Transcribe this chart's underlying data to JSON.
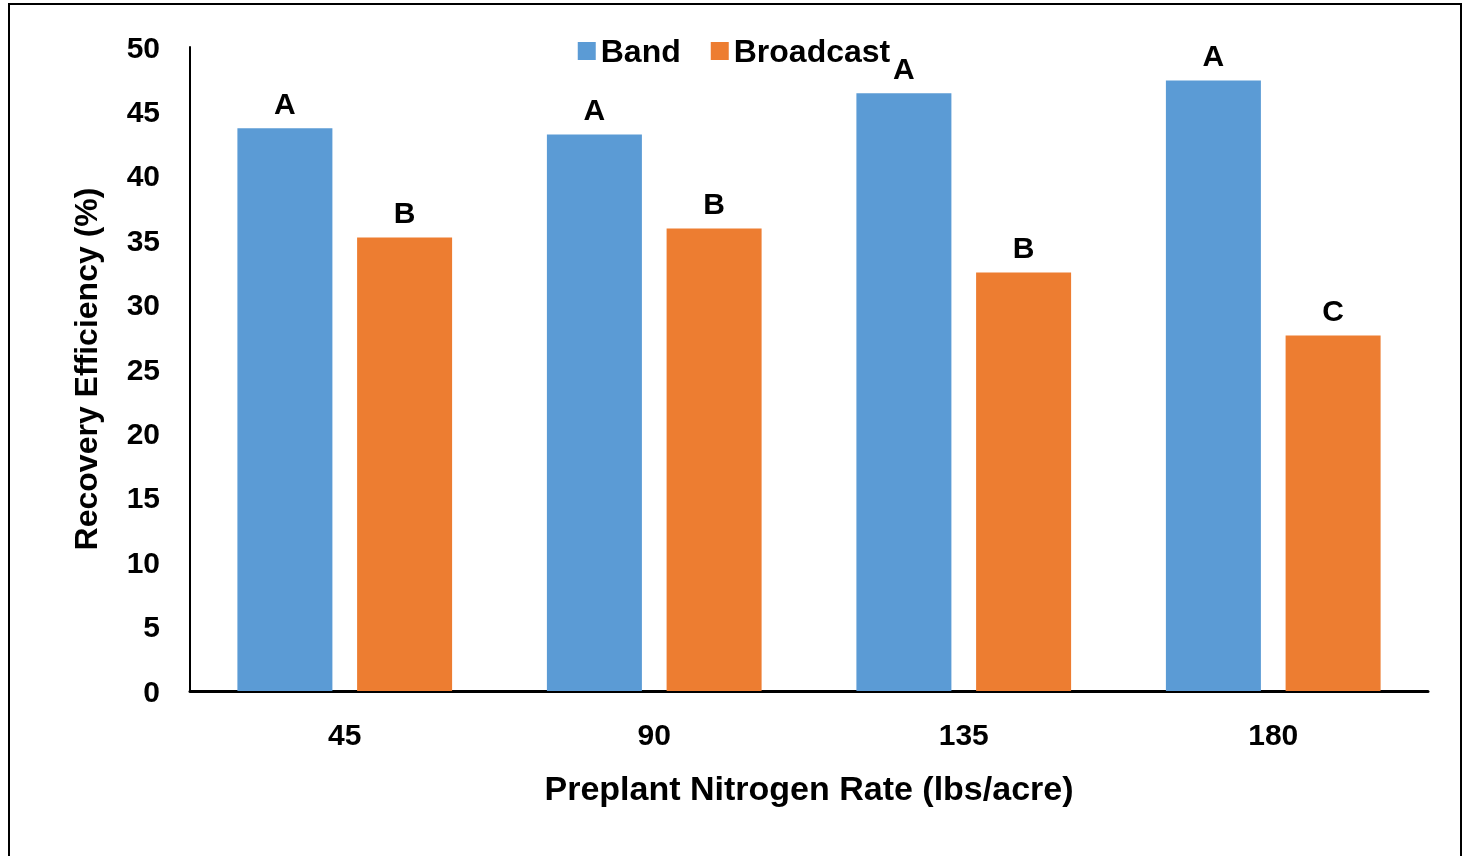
{
  "chart_data": {
    "type": "bar",
    "xlabel": "Preplant Nitrogen Rate (lbs/acre)",
    "ylabel": "Recovery Efficiency (%)",
    "categories": [
      "45",
      "90",
      "135",
      "180"
    ],
    "series": [
      {
        "name": "Band",
        "color": "#5b9bd5",
        "values": [
          43.7,
          43.2,
          46.4,
          47.4
        ],
        "value_labels": [
          "A",
          "A",
          "A",
          "A"
        ]
      },
      {
        "name": "Broadcast",
        "color": "#ed7d31",
        "values": [
          35.2,
          35.9,
          32.5,
          27.6
        ],
        "value_labels": [
          "B",
          "B",
          "B",
          "C"
        ]
      }
    ],
    "ylim": [
      0,
      50
    ],
    "yticks": [
      0,
      5,
      10,
      15,
      20,
      25,
      30,
      35,
      40,
      45,
      50
    ],
    "grid": false,
    "legend": "top"
  }
}
